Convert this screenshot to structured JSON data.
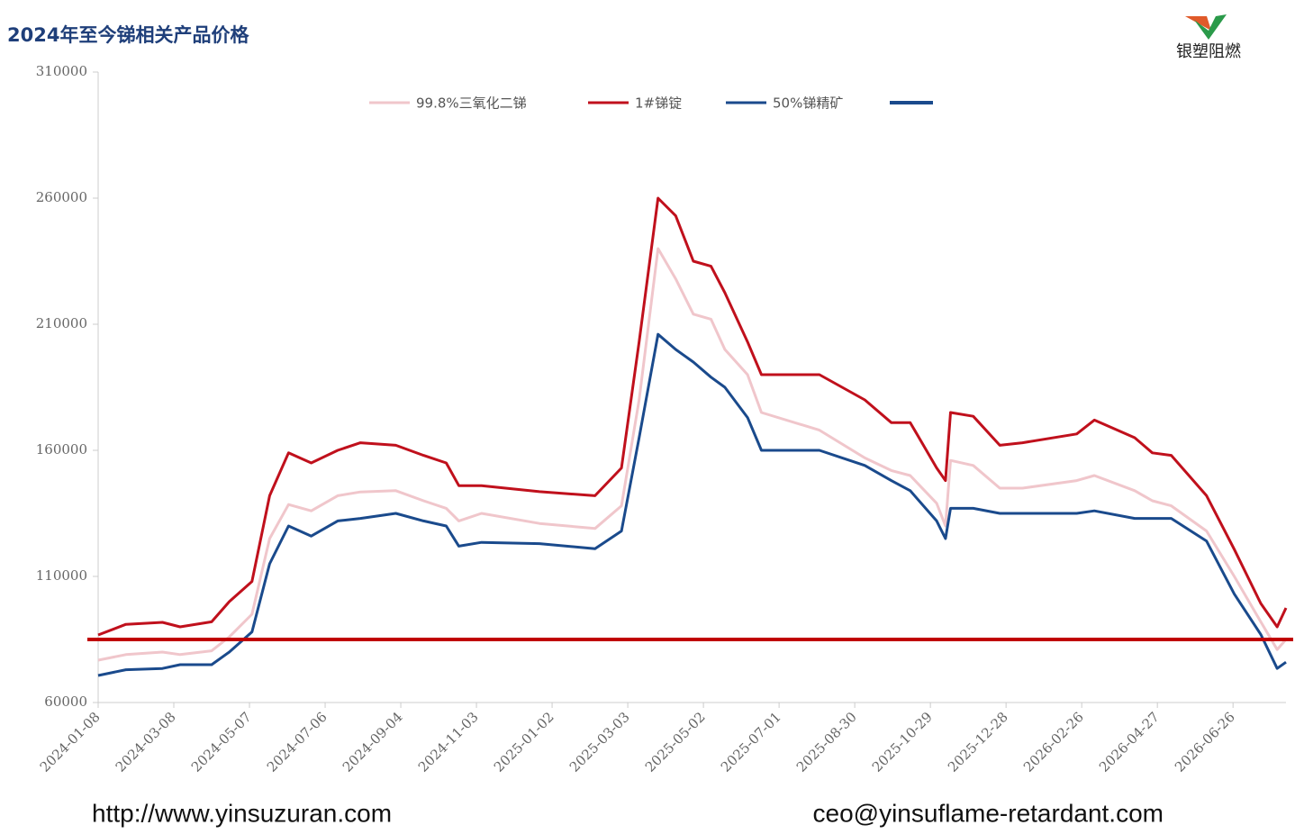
{
  "chart_data": {
    "type": "line",
    "title": "2024年至今锑相关产品价格",
    "x": [
      "2024-01-08",
      "2024-01-30",
      "2024-02-28",
      "2024-03-13",
      "2024-04-07",
      "2024-04-21",
      "2024-05-09",
      "2024-05-23",
      "2024-06-07",
      "2024-06-25",
      "2024-07-16",
      "2024-08-03",
      "2024-08-31",
      "2024-09-22",
      "2024-10-10",
      "2024-10-20",
      "2024-11-07",
      "2024-12-23",
      "2025-02-05",
      "2025-02-26",
      "2025-03-12",
      "2025-03-27",
      "2025-04-10",
      "2025-04-24",
      "2025-05-08",
      "2025-05-19",
      "2025-06-06",
      "2025-06-17",
      "2025-08-02",
      "2025-09-07",
      "2025-09-28",
      "2025-10-13",
      "2025-11-03",
      "2025-11-10",
      "2025-11-14",
      "2025-12-02",
      "2025-12-23",
      "2026-01-10",
      "2026-02-22",
      "2026-03-08",
      "2026-04-09",
      "2026-04-23",
      "2026-05-08",
      "2026-06-05",
      "2026-06-27",
      "2026-07-18",
      "2026-07-31",
      "2026-08-07"
    ],
    "series": [
      {
        "name": "99.8%三氧化二锑",
        "color": "#f0c6cb",
        "values": [
          76800,
          79000,
          80000,
          79000,
          80500,
          86000,
          95000,
          125000,
          138500,
          136000,
          142000,
          143500,
          144000,
          140000,
          137000,
          132000,
          135000,
          131000,
          129000,
          138000,
          180000,
          240000,
          228000,
          214000,
          212000,
          200000,
          190000,
          175000,
          168000,
          157000,
          152000,
          150000,
          139000,
          130000,
          156000,
          154000,
          145000,
          145000,
          148000,
          150000,
          144000,
          140000,
          138000,
          128000,
          110000,
          92000,
          81000,
          85000
        ]
      },
      {
        "name": "1#锑锭",
        "color": "#c0101c",
        "values": [
          86800,
          91000,
          91800,
          90000,
          92000,
          100000,
          108000,
          142000,
          159000,
          155000,
          160000,
          163000,
          162000,
          158000,
          155000,
          146000,
          146000,
          143600,
          142000,
          153000,
          203000,
          260000,
          253000,
          235000,
          233000,
          222500,
          203000,
          190000,
          190000,
          180000,
          171000,
          171000,
          153000,
          148000,
          175000,
          173500,
          162000,
          163000,
          166500,
          172000,
          165000,
          159000,
          158000,
          142000,
          120700,
          99300,
          90000,
          97500
        ]
      },
      {
        "name": "50%锑精矿",
        "color": "#1a4a8c",
        "values": [
          70700,
          73000,
          73500,
          75000,
          75000,
          80000,
          88000,
          115000,
          130000,
          126000,
          132000,
          133000,
          135000,
          132000,
          130000,
          122000,
          123500,
          123000,
          121000,
          128000,
          165000,
          206000,
          200000,
          195000,
          189000,
          185000,
          173000,
          160000,
          160000,
          154000,
          148000,
          144000,
          132000,
          125000,
          137000,
          137000,
          135000,
          135000,
          135000,
          136000,
          133000,
          133000,
          133000,
          124000,
          103000,
          87000,
          73500,
          76000
        ]
      }
    ],
    "reference_line": {
      "value": 85000,
      "color": "#c00000"
    },
    "xlim": [
      "2024-01-08",
      "2026-08-07"
    ],
    "xticks": [
      "2024-01-08",
      "2024-03-08",
      "2024-05-07",
      "2024-07-06",
      "2024-09-04",
      "2024-11-03",
      "2025-01-02",
      "2025-03-03",
      "2025-05-02",
      "2025-07-01",
      "2025-08-30",
      "2025-10-29",
      "2025-12-28",
      "2026-02-26",
      "2026-04-27",
      "2026-06-26"
    ],
    "ylim": [
      60000,
      310000
    ],
    "yticks": [
      60000,
      110000,
      160000,
      210000,
      260000,
      310000
    ],
    "legend": "top"
  },
  "logo_text": "银塑阻燃",
  "footer": {
    "website": "http://www.yinsuzuran.com",
    "email": "ceo@yinsuflame-retardant.com"
  }
}
